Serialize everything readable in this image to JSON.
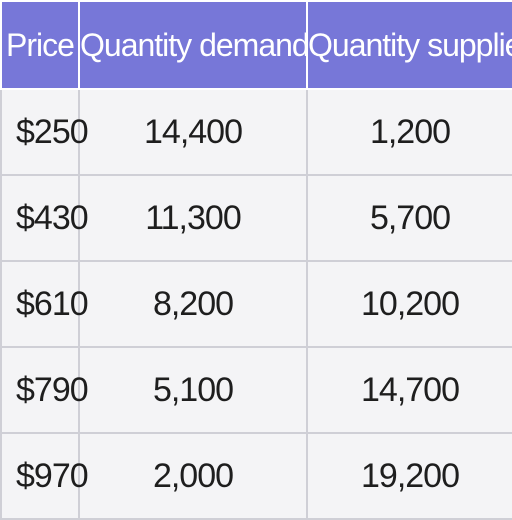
{
  "chart_data": {
    "type": "table",
    "columns": [
      "Price",
      "Quantity demanded",
      "Quantity supplied"
    ],
    "rows": [
      [
        "$250",
        "14,400",
        "1,200"
      ],
      [
        "$430",
        "11,300",
        "5,700"
      ],
      [
        "$610",
        "8,200",
        "10,200"
      ],
      [
        "$790",
        "5,100",
        "14,700"
      ],
      [
        "$970",
        "2,000",
        "19,200"
      ]
    ]
  },
  "colors": {
    "header_bg": "#7777d8",
    "header_text": "#ffffff",
    "cell_bg": "#f4f4f6",
    "cell_text": "#1e1e1e",
    "grid": "#cfcfd6"
  }
}
